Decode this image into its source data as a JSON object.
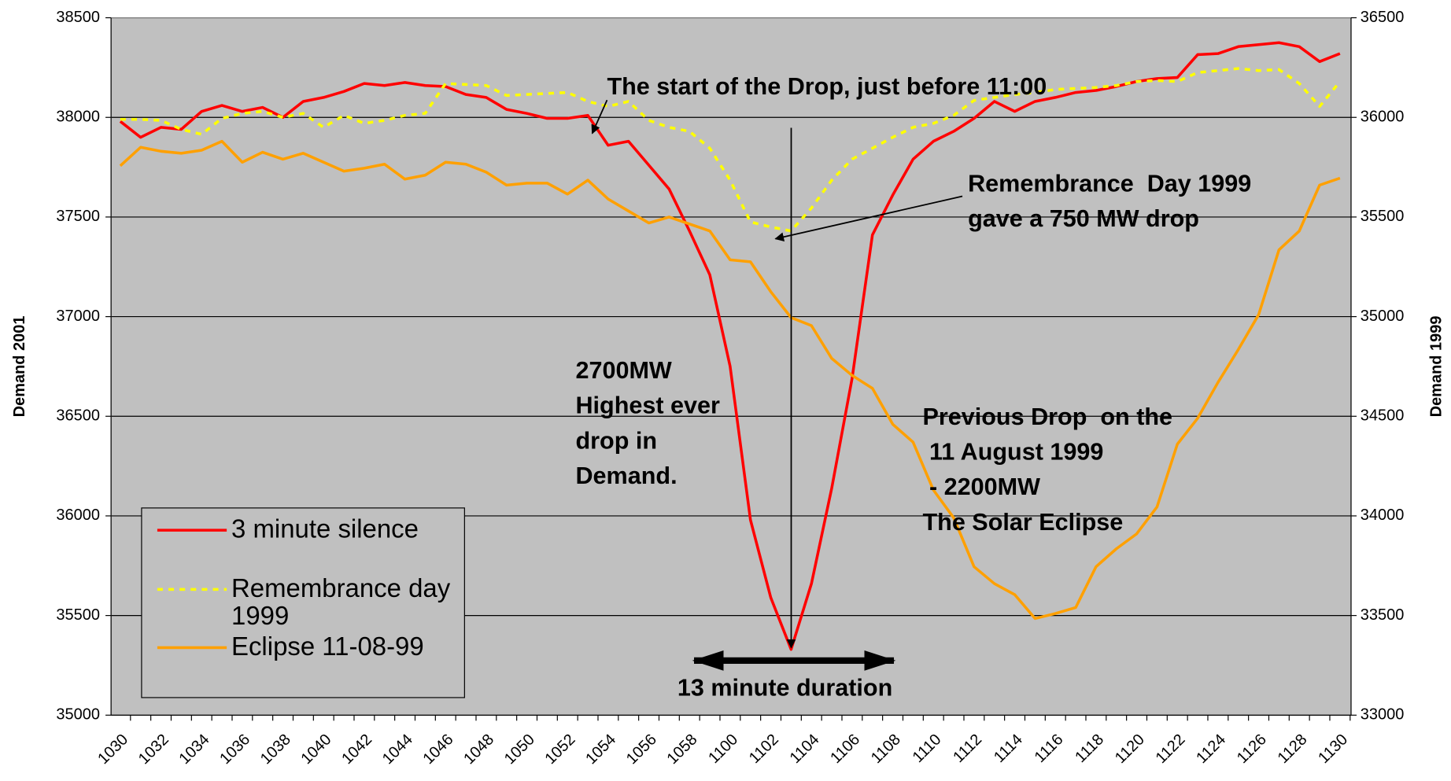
{
  "chart_data": {
    "type": "line",
    "y_label": "Demand 2001",
    "y2_label": "Demand 1999",
    "categories": [
      "1030",
      null,
      "1032",
      null,
      "1034",
      null,
      "1036",
      null,
      "1038",
      null,
      "1040",
      null,
      "1042",
      null,
      "1044",
      null,
      "1046",
      null,
      "1048",
      null,
      "1050",
      null,
      "1052",
      null,
      "1054",
      null,
      "1056",
      null,
      "1058",
      null,
      "1100",
      null,
      "1102",
      null,
      "1104",
      null,
      "1106",
      null,
      "1108",
      null,
      "1110",
      null,
      "1112",
      null,
      "1114",
      null,
      "1116",
      null,
      "1118",
      null,
      "1120",
      null,
      "1122",
      null,
      "1124",
      null,
      "1126",
      null,
      "1128",
      null,
      "1130"
    ],
    "series": [
      {
        "name": "3 minute silence",
        "color": "#ff0000",
        "dashed": false,
        "values": [
          37980,
          37900,
          37950,
          37940,
          38030,
          38060,
          38030,
          38050,
          38000,
          38080,
          38100,
          38130,
          38170,
          38160,
          38175,
          38160,
          38155,
          38115,
          38100,
          38040,
          38020,
          37995,
          37995,
          38010,
          37860,
          37880,
          37760,
          37640,
          37430,
          37210,
          36750,
          35980,
          35590,
          35330,
          35660,
          36140,
          36690,
          37410,
          37610,
          37790,
          37880,
          37930,
          37995,
          38080,
          38030,
          38080,
          38100,
          38125,
          38135,
          38155,
          38180,
          38195,
          38200,
          38315,
          38320,
          38355,
          38365,
          38375,
          38355,
          38280,
          38320
        ]
      },
      {
        "name": "Remembrance day 1999",
        "color": "#ffff00",
        "dashed": true,
        "axis": "y2",
        "values": [
          35990,
          35990,
          35985,
          35940,
          35915,
          35995,
          36020,
          36030,
          36000,
          36020,
          35950,
          36010,
          35970,
          35985,
          36010,
          36020,
          36170,
          36165,
          36160,
          36110,
          36115,
          36120,
          36125,
          36080,
          36055,
          36080,
          35985,
          35950,
          35930,
          35845,
          35685,
          35475,
          35450,
          35430,
          35545,
          35685,
          35790,
          35845,
          35900,
          35950,
          35970,
          36010,
          36085,
          36100,
          36115,
          36125,
          36140,
          36145,
          36150,
          36160,
          36180,
          36185,
          36180,
          36225,
          36235,
          36245,
          36235,
          36240,
          36170,
          36055,
          36180
        ]
      },
      {
        "name": "Eclipse 11-08-99",
        "color": "#ffa000",
        "dashed": false,
        "axis": "y2",
        "values": [
          35757,
          35850,
          35830,
          35820,
          35835,
          35880,
          35775,
          35825,
          35790,
          35820,
          35775,
          35730,
          35745,
          35765,
          35690,
          35710,
          35775,
          35765,
          35725,
          35660,
          35670,
          35670,
          35615,
          35685,
          35590,
          35530,
          35470,
          35500,
          35465,
          35430,
          35285,
          35275,
          35125,
          34995,
          34955,
          34790,
          34705,
          34640,
          34460,
          34370,
          34130,
          33990,
          33745,
          33660,
          33605,
          33485,
          33510,
          33540,
          33745,
          33835,
          33910,
          34045,
          34360,
          34490,
          34670,
          34835,
          35010,
          35335,
          35430,
          35660,
          35695
        ]
      }
    ],
    "ylim": [
      35000,
      38500
    ],
    "yticks": [
      35000,
      35500,
      36000,
      36500,
      37000,
      37500,
      38000,
      38500
    ],
    "y2lim": [
      33000,
      36500
    ],
    "y2ticks": [
      33000,
      33500,
      34000,
      34500,
      35000,
      35500,
      36000,
      36500
    ],
    "grid": true,
    "legend": "lower-left",
    "annotations": [
      [
        "The start of the Drop, just before 11:00"
      ],
      [
        "Remembrance  Day 1999",
        "gave a 750 MW drop"
      ],
      [
        "2700MW",
        "Highest ever",
        "drop in",
        "Demand."
      ],
      [
        "Previous Drop  on the",
        " 11 August 1999",
        " - 2200MW",
        "The Solar Eclipse"
      ],
      [
        "13 minute duration"
      ]
    ]
  }
}
